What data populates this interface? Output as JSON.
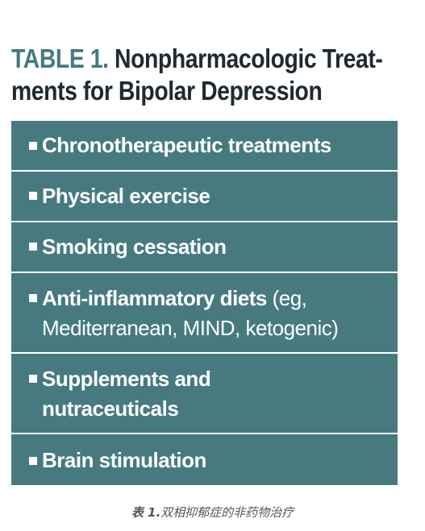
{
  "title": {
    "number": "TABLE 1.",
    "line1": "Nonpharmacologic Treat-",
    "line2": "ments for Bipolar Depression"
  },
  "table": {
    "rows": [
      {
        "bold": "Chronotherapeutic treatments"
      },
      {
        "bold": "Physical exercise"
      },
      {
        "bold": "Smoking cessation"
      },
      {
        "bold": "Anti-inflammatory diets",
        "normal_first": " (eg,",
        "normal_second": "Mediterranean, MIND, ketogenic)"
      },
      {
        "bold": "Supplements and",
        "bold_second": "nutraceuticals"
      },
      {
        "bold": "Brain stimulation"
      }
    ]
  },
  "colors": {
    "accent": "#467a7f",
    "title_text": "#1f2a30",
    "row_text": "#ffffff",
    "caption": "#555555"
  },
  "caption": {
    "label": "表 1.",
    "text": "双相抑郁症的非药物治疗"
  }
}
